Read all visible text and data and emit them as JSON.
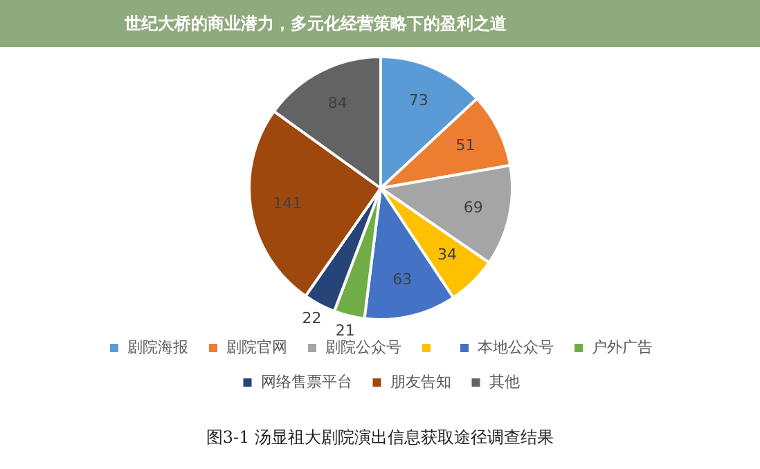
{
  "chart_data": {
    "type": "pie",
    "title": "世纪大桥的商业潜力，多元化经营策略下的盈利之道",
    "categories": [
      "剧院海报",
      "剧院官网",
      "剧院公众号",
      null,
      "本地公众号",
      "户外广告",
      "网络售票平台",
      "朋友告知",
      "其他"
    ],
    "values": [
      73,
      51,
      69,
      34,
      63,
      21,
      22,
      141,
      84
    ],
    "colors": [
      "#5b9bd5",
      "#ed7d31",
      "#a5a5a5",
      "#ffc000",
      "#4472c4",
      "#70ad47",
      "#264478",
      "#9e480e",
      "#636363"
    ],
    "data_labels": true,
    "legend": "bottom",
    "annotations": [
      "图3-1 汤显祖大剧院演出信息获取途径调查结果"
    ]
  }
}
